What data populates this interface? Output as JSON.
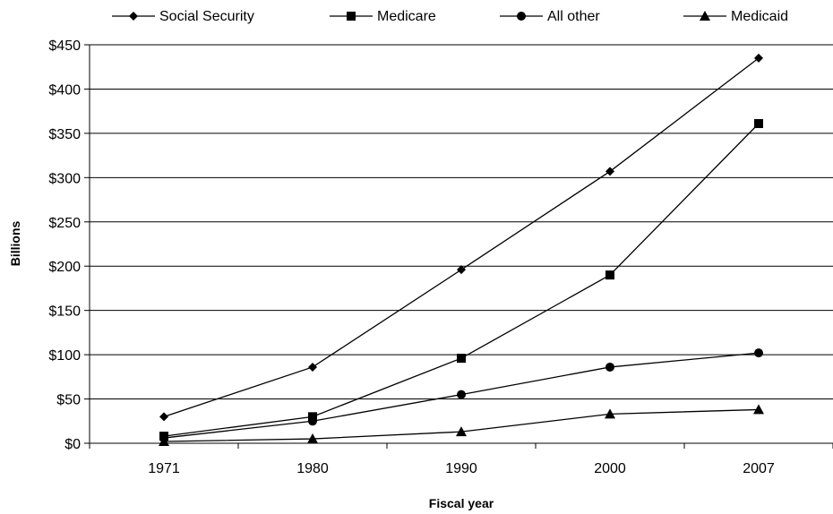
{
  "chart_data": {
    "type": "line",
    "xlabel": "Fiscal year",
    "ylabel": "Billions",
    "categories": [
      "1971",
      "1980",
      "1990",
      "2000",
      "2007"
    ],
    "ylim": [
      0,
      450
    ],
    "yticks": [
      "$0",
      "$50",
      "$100",
      "$150",
      "$200",
      "$250",
      "$300",
      "$350",
      "$400",
      "$450"
    ],
    "ytick_values": [
      0,
      50,
      100,
      150,
      200,
      250,
      300,
      350,
      400,
      450
    ],
    "grid": true,
    "legend_position": "top",
    "series": [
      {
        "name": "Social Security",
        "marker": "diamond",
        "values": [
          30,
          86,
          196,
          307,
          435
        ]
      },
      {
        "name": "Medicare",
        "marker": "square",
        "values": [
          8,
          30,
          96,
          190,
          361
        ]
      },
      {
        "name": "All other",
        "marker": "circle",
        "values": [
          6,
          25,
          55,
          86,
          102
        ]
      },
      {
        "name": "Medicaid",
        "marker": "triangle",
        "values": [
          2,
          5,
          13,
          33,
          38
        ]
      }
    ]
  }
}
